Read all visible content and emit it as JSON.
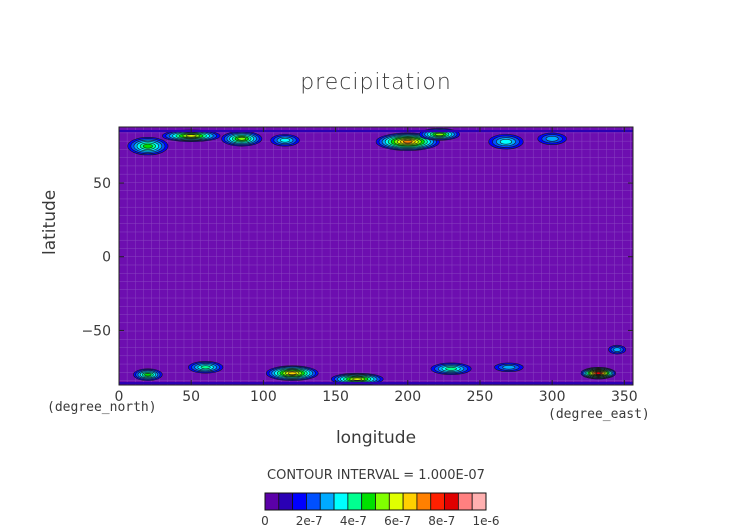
{
  "chart_data": {
    "type": "heatmap",
    "title": "precipitation",
    "xlabel": "longitude",
    "ylabel": "latitude",
    "x_unit": "(degree_east)",
    "y_unit": "(degree_north)",
    "xlim": [
      0,
      356
    ],
    "ylim": [
      -87,
      88
    ],
    "x_ticks": [
      0,
      50,
      100,
      150,
      200,
      250,
      300,
      350
    ],
    "y_ticks": [
      -50,
      0,
      50
    ],
    "contour_interval_text": "CONTOUR INTERVAL = 1.000E-07",
    "colorbar": {
      "colors": [
        "#5b00a8",
        "#2a00b4",
        "#0000ff",
        "#0050ff",
        "#00aaff",
        "#00ffff",
        "#00ff90",
        "#00e000",
        "#80ff00",
        "#e0ff00",
        "#ffd000",
        "#ff8000",
        "#ff2000",
        "#e00000",
        "#ff8080",
        "#ffb0b0"
      ],
      "tick_labels": [
        "0",
        "2e-7",
        "4e-7",
        "6e-7",
        "8e-7",
        "1e-6"
      ],
      "range": [
        0,
        1e-06
      ]
    },
    "background_level_color": "#6d0eb0",
    "features": [
      {
        "lon": 20,
        "lat": 75,
        "dlon": 14,
        "dlat": 6,
        "level": 6
      },
      {
        "lon": 50,
        "lat": 82,
        "dlon": 20,
        "dlat": 4,
        "level": 8
      },
      {
        "lon": 85,
        "lat": 80,
        "dlon": 14,
        "dlat": 5,
        "level": 7
      },
      {
        "lon": 115,
        "lat": 79,
        "dlon": 10,
        "dlat": 4,
        "level": 4
      },
      {
        "lon": 200,
        "lat": 78,
        "dlon": 22,
        "dlat": 6,
        "level": 10
      },
      {
        "lon": 222,
        "lat": 83,
        "dlon": 14,
        "dlat": 4,
        "level": 7
      },
      {
        "lon": 268,
        "lat": 78,
        "dlon": 12,
        "dlat": 5,
        "level": 4
      },
      {
        "lon": 300,
        "lat": 80,
        "dlon": 10,
        "dlat": 4,
        "level": 3
      },
      {
        "lon": 20,
        "lat": -80,
        "dlon": 10,
        "dlat": 4,
        "level": 6
      },
      {
        "lon": 60,
        "lat": -75,
        "dlon": 12,
        "dlat": 4,
        "level": 5
      },
      {
        "lon": 120,
        "lat": -79,
        "dlon": 18,
        "dlat": 5,
        "level": 9
      },
      {
        "lon": 165,
        "lat": -83,
        "dlon": 18,
        "dlat": 4,
        "level": 8
      },
      {
        "lon": 230,
        "lat": -76,
        "dlon": 14,
        "dlat": 4,
        "level": 5
      },
      {
        "lon": 270,
        "lat": -75,
        "dlon": 10,
        "dlat": 3,
        "level": 3
      },
      {
        "lon": 332,
        "lat": -79,
        "dlon": 12,
        "dlat": 4,
        "level": 12
      },
      {
        "lon": 345,
        "lat": -63,
        "dlon": 6,
        "dlat": 3,
        "level": 3
      }
    ]
  }
}
